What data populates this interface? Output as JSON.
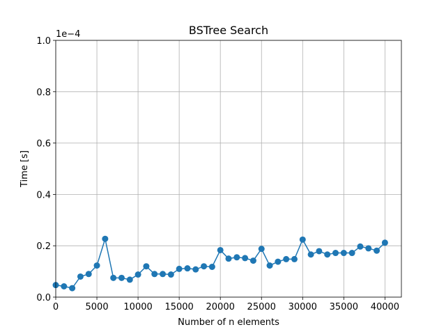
{
  "chart_data": {
    "type": "line",
    "title": "BSTree Search",
    "xlabel": "Number of n elements",
    "ylabel": "Time [s]",
    "offset_label": "1e−4",
    "xlim": [
      0,
      42000
    ],
    "ylim": [
      0,
      1.0
    ],
    "xticks": [
      0,
      5000,
      10000,
      15000,
      20000,
      25000,
      30000,
      35000,
      40000
    ],
    "yticks": [
      0.0,
      0.2,
      0.4,
      0.6,
      0.8,
      1.0
    ],
    "ytick_labels": [
      "0.0",
      "0.2",
      "0.4",
      "0.6",
      "0.8",
      "1.0"
    ],
    "grid": true,
    "color": "#1f77b4",
    "marker": "circle",
    "series": [
      {
        "x": [
          0,
          1000,
          2000,
          3000,
          4000,
          5000,
          6000,
          7000,
          8000,
          9000,
          10000,
          11000,
          12000,
          13000,
          14000,
          15000,
          16000,
          17000,
          18000,
          19000,
          20000,
          21000,
          22000,
          23000,
          24000,
          25000,
          26000,
          27000,
          28000,
          29000,
          30000,
          31000,
          32000,
          33000,
          34000,
          35000,
          36000,
          37000,
          38000,
          39000,
          40000
        ],
        "y": [
          0.047,
          0.042,
          0.035,
          0.08,
          0.09,
          0.123,
          0.227,
          0.075,
          0.075,
          0.068,
          0.088,
          0.12,
          0.09,
          0.09,
          0.088,
          0.11,
          0.112,
          0.108,
          0.12,
          0.118,
          0.183,
          0.15,
          0.155,
          0.152,
          0.142,
          0.188,
          0.123,
          0.138,
          0.148,
          0.148,
          0.224,
          0.166,
          0.179,
          0.166,
          0.172,
          0.172,
          0.172,
          0.197,
          0.19,
          0.181,
          0.212
        ]
      }
    ]
  }
}
